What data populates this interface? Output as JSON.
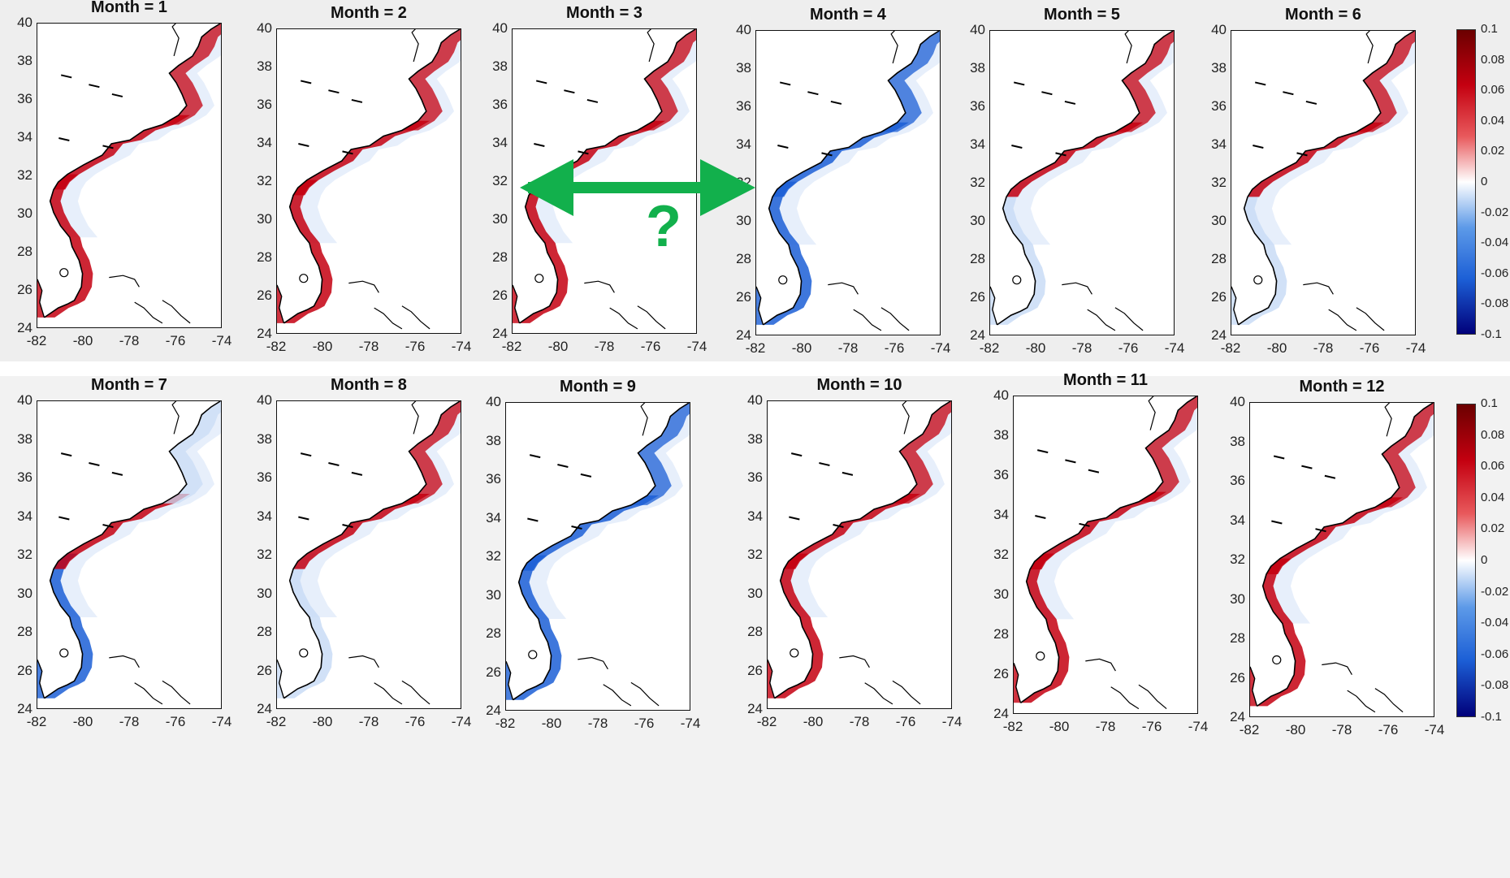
{
  "panels": [
    {
      "title": "Month = 1",
      "pattern": "warm"
    },
    {
      "title": "Month = 2",
      "pattern": "warm"
    },
    {
      "title": "Month = 3",
      "pattern": "warm"
    },
    {
      "title": "Month = 4",
      "pattern": "cool"
    },
    {
      "title": "Month = 5",
      "pattern": "mixed"
    },
    {
      "title": "Month = 6",
      "pattern": "mixed"
    },
    {
      "title": "Month = 7",
      "pattern": "coolnorth"
    },
    {
      "title": "Month = 8",
      "pattern": "mixed"
    },
    {
      "title": "Month = 9",
      "pattern": "cool"
    },
    {
      "title": "Month = 10",
      "pattern": "warm"
    },
    {
      "title": "Month = 11",
      "pattern": "warm"
    },
    {
      "title": "Month = 12",
      "pattern": "warm"
    }
  ],
  "y_ticks": [
    "40",
    "38",
    "36",
    "34",
    "32",
    "30",
    "28",
    "26",
    "24"
  ],
  "x_ticks": [
    "-82",
    "-80",
    "-78",
    "-76",
    "-74"
  ],
  "colorbar_ticks": [
    "0.1",
    "0.08",
    "0.06",
    "0.04",
    "0.02",
    "0",
    "-0.02",
    "-0.04",
    "-0.06",
    "-0.08",
    "-0.1"
  ],
  "colors": {
    "warm_strong": "#c40010",
    "warm_light": "#f3a3a6",
    "cool_strong": "#1c5fd6",
    "cool_light": "#c9dcf6",
    "land_outline": "#000000",
    "arrow": "#12b04c"
  },
  "annotation": {
    "text": "?"
  }
}
